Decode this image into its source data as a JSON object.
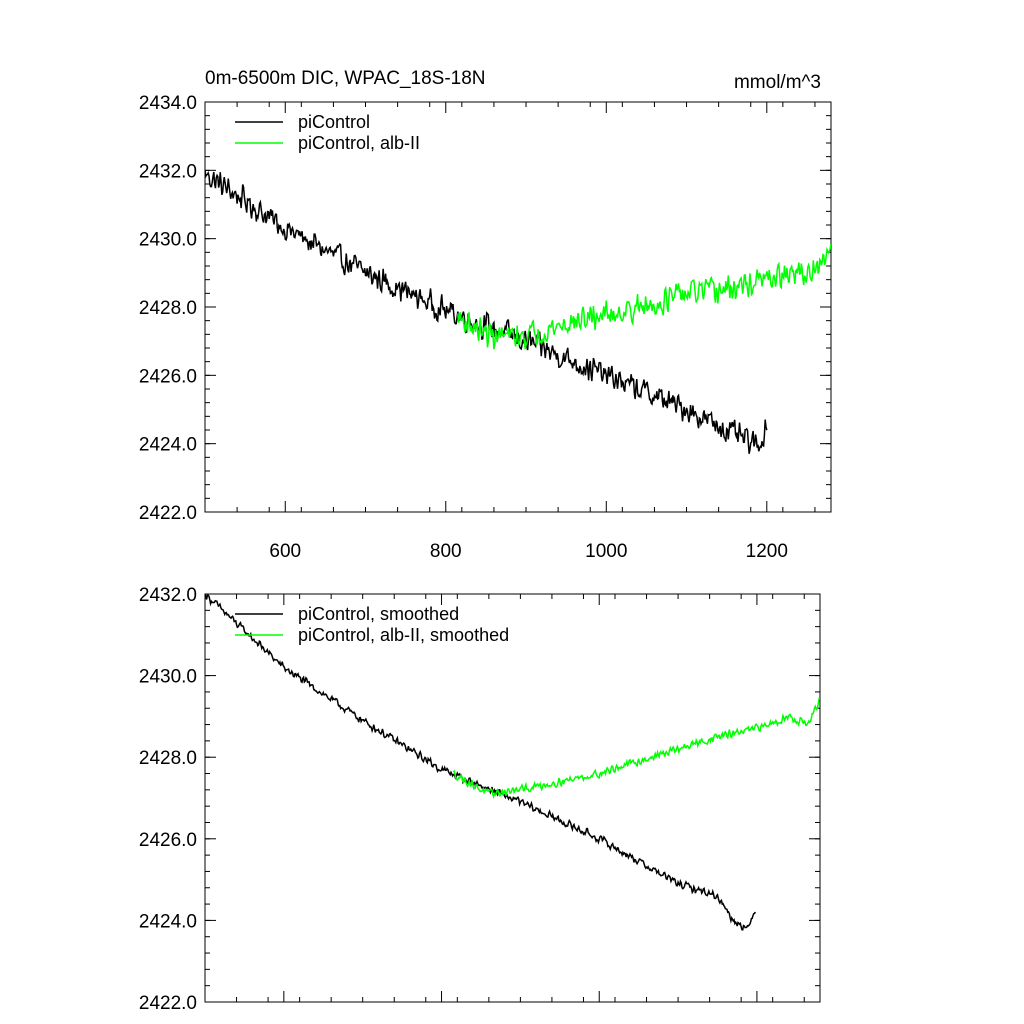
{
  "chart_data": [
    {
      "type": "line",
      "title": "0m-6500m DIC, WPAC_18S-18N",
      "units": "mmol/m^3",
      "xlim": [
        500,
        1280
      ],
      "ylim": [
        2422.0,
        2434.0
      ],
      "x_ticks": [
        600,
        800,
        1000,
        1200
      ],
      "x_tick_labels": [
        "600",
        "800",
        "1000",
        "1200"
      ],
      "y_ticks": [
        2422.0,
        2424.0,
        2426.0,
        2428.0,
        2430.0,
        2432.0,
        2434.0
      ],
      "y_tick_labels": [
        "2422.0",
        "2424.0",
        "2426.0",
        "2428.0",
        "2430.0",
        "2432.0",
        "2434.0"
      ],
      "legend_position": "top-left",
      "series": [
        {
          "name": "piControl",
          "color": "#000000",
          "noise": 0.45,
          "keypoints": [
            [
              500,
              2431.9
            ],
            [
              600,
              2430.3
            ],
            [
              700,
              2429.0
            ],
            [
              800,
              2427.9
            ],
            [
              900,
              2427.0
            ],
            [
              1000,
              2426.0
            ],
            [
              1100,
              2425.0
            ],
            [
              1150,
              2424.4
            ],
            [
              1190,
              2423.9
            ],
            [
              1200,
              2424.6
            ]
          ]
        },
        {
          "name": "piControl, alb-II",
          "color": "#00ff00",
          "noise": 0.45,
          "keypoints": [
            [
              815,
              2427.7
            ],
            [
              850,
              2427.2
            ],
            [
              890,
              2427.1
            ],
            [
              950,
              2427.5
            ],
            [
              1000,
              2427.8
            ],
            [
              1050,
              2428.0
            ],
            [
              1100,
              2428.4
            ],
            [
              1150,
              2428.5
            ],
            [
              1200,
              2428.8
            ],
            [
              1240,
              2429.0
            ],
            [
              1265,
              2429.0
            ],
            [
              1280,
              2429.8
            ]
          ]
        }
      ]
    },
    {
      "type": "line",
      "title": "",
      "units": "",
      "xlim": [
        500,
        1280
      ],
      "ylim": [
        2422.0,
        2432.0
      ],
      "x_ticks": [
        600,
        800,
        1000,
        1200
      ],
      "x_tick_labels": [],
      "y_ticks": [
        2422.0,
        2424.0,
        2426.0,
        2428.0,
        2430.0,
        2432.0
      ],
      "y_tick_labels": [
        "2422.0",
        "2424.0",
        "2426.0",
        "2428.0",
        "2430.0",
        "2432.0"
      ],
      "legend_position": "top-left",
      "series": [
        {
          "name": "piControl, smoothed",
          "color": "#000000",
          "noise": 0.12,
          "keypoints": [
            [
              500,
              2432.0
            ],
            [
              600,
              2430.2
            ],
            [
              700,
              2428.9
            ],
            [
              800,
              2427.7
            ],
            [
              900,
              2426.9
            ],
            [
              1000,
              2426.0
            ],
            [
              1100,
              2424.9
            ],
            [
              1150,
              2424.6
            ],
            [
              1170,
              2424.0
            ],
            [
              1190,
              2423.8
            ],
            [
              1198,
              2424.3
            ]
          ]
        },
        {
          "name": "piControl, alb-II, smoothed",
          "color": "#00ff00",
          "noise": 0.12,
          "keypoints": [
            [
              815,
              2427.6
            ],
            [
              860,
              2427.1
            ],
            [
              900,
              2427.2
            ],
            [
              1000,
              2427.6
            ],
            [
              1100,
              2428.2
            ],
            [
              1150,
              2428.5
            ],
            [
              1200,
              2428.7
            ],
            [
              1240,
              2429.0
            ],
            [
              1265,
              2428.8
            ],
            [
              1280,
              2429.4
            ]
          ]
        }
      ]
    }
  ]
}
